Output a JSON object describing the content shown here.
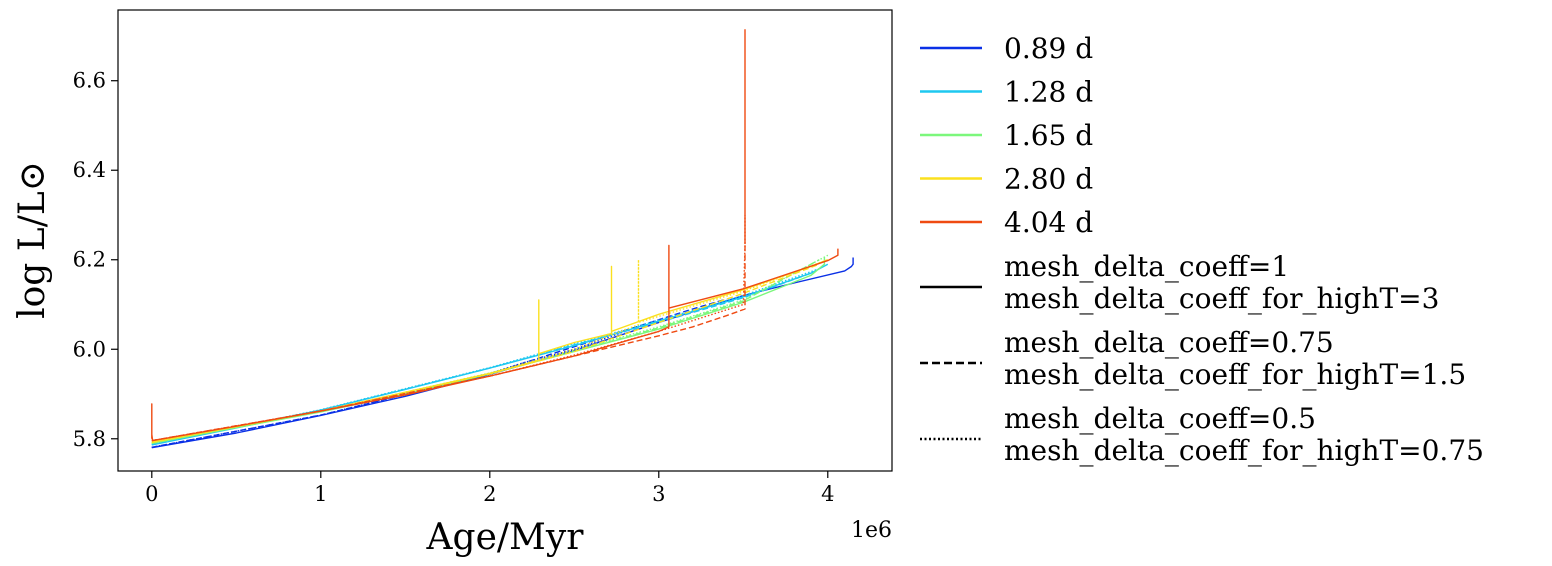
{
  "chart_data": {
    "type": "line",
    "xlabel": "Age/Myr",
    "ylabel": "log L/L⊙",
    "x_offset_text": "1e6",
    "xlim": [
      -200000,
      4380000
    ],
    "ylim": [
      5.728,
      6.758
    ],
    "x_ticks": [
      0,
      1000000,
      2000000,
      3000000,
      4000000
    ],
    "x_tick_labels": [
      "0",
      "1",
      "2",
      "3",
      "4"
    ],
    "y_ticks": [
      5.8,
      6.0,
      6.2,
      6.4,
      6.6
    ],
    "y_tick_labels": [
      "5.8",
      "6.0",
      "6.2",
      "6.4",
      "6.6"
    ],
    "grid": false,
    "legend_position": "outside-right",
    "legend_colors": [
      {
        "label": "0.89 d",
        "color": "#0a30e6"
      },
      {
        "label": "1.28 d",
        "color": "#1ec8f0"
      },
      {
        "label": "1.65 d",
        "color": "#7cf77c"
      },
      {
        "label": "2.80 d",
        "color": "#fbe01e"
      },
      {
        "label": "4.04 d",
        "color": "#ef4a12"
      }
    ],
    "legend_styles": [
      {
        "label_lines": [
          "mesh_delta_coeff=1",
          "mesh_delta_coeff_for_highT=3"
        ],
        "dash": "solid"
      },
      {
        "label_lines": [
          "mesh_delta_coeff=0.75",
          "mesh_delta_coeff_for_highT=1.5"
        ],
        "dash": "dashed"
      },
      {
        "label_lines": [
          "mesh_delta_coeff=0.5",
          "mesh_delta_coeff_for_highT=0.75"
        ],
        "dash": "dotted"
      }
    ],
    "series": [
      {
        "period": "0.89 d",
        "style": "solid",
        "color": "#0a30e6",
        "x": [
          0,
          500000,
          1000000,
          1500000,
          2000000,
          2500000,
          3000000,
          3500000,
          3800000,
          4100000,
          4140000,
          4150000,
          4150000
        ],
        "y": [
          5.78,
          5.813,
          5.852,
          5.895,
          5.944,
          5.997,
          6.06,
          6.12,
          6.148,
          6.175,
          6.185,
          6.19,
          6.205
        ]
      },
      {
        "period": "0.89 d",
        "style": "dashed",
        "color": "#0a30e6",
        "x": [
          0,
          1000000,
          2000000,
          2700000,
          3200000,
          3400000
        ],
        "y": [
          5.781,
          5.853,
          5.945,
          6.03,
          6.09,
          6.112
        ]
      },
      {
        "period": "0.89 d",
        "style": "dotted",
        "color": "#0a30e6",
        "x": [
          0,
          1000000,
          2000000,
          2200000,
          2500000,
          2800000
        ],
        "y": [
          5.781,
          5.853,
          5.946,
          5.97,
          6.0,
          6.04
        ]
      },
      {
        "period": "1.28 d",
        "style": "solid",
        "color": "#1ec8f0",
        "x": [
          0,
          500000,
          1000000,
          1500000,
          2000000,
          2500000,
          3000000,
          3500000,
          3900000,
          4000000
        ],
        "y": [
          5.786,
          5.824,
          5.864,
          5.91,
          5.958,
          6.008,
          6.063,
          6.117,
          6.17,
          6.19
        ]
      },
      {
        "period": "1.28 d",
        "style": "dashed",
        "color": "#1ec8f0",
        "x": [
          0,
          1000000,
          2000000,
          2500000,
          3000000,
          3500000,
          3900000
        ],
        "y": [
          5.787,
          5.864,
          5.958,
          6.01,
          6.06,
          6.115,
          6.17
        ]
      },
      {
        "period": "1.28 d",
        "style": "dotted",
        "color": "#1ec8f0",
        "x": [
          0,
          1000000,
          2000000,
          2500000,
          3000000,
          3500000,
          3950000
        ],
        "y": [
          5.787,
          5.865,
          5.959,
          6.012,
          6.065,
          6.12,
          6.18
        ]
      },
      {
        "period": "1.65 d",
        "style": "solid",
        "color": "#7cf77c",
        "x": [
          0,
          500000,
          1000000,
          1500000,
          2000000,
          2500000,
          3000000,
          3500000,
          3900000,
          3980000,
          3980000
        ],
        "y": [
          5.79,
          5.825,
          5.86,
          5.9,
          5.945,
          5.995,
          6.045,
          6.105,
          6.165,
          6.19,
          6.205
        ]
      },
      {
        "period": "1.65 d",
        "style": "dashed",
        "color": "#7cf77c",
        "x": [
          0,
          1000000,
          2000000,
          2500000,
          3000000,
          3500000,
          3950000
        ],
        "y": [
          5.79,
          5.861,
          5.946,
          5.995,
          6.048,
          6.108,
          6.2
        ]
      },
      {
        "period": "1.65 d",
        "style": "dotted",
        "color": "#7cf77c",
        "x": [
          0,
          1000000,
          2000000,
          2500000,
          3000000,
          3500000,
          4000000
        ],
        "y": [
          5.79,
          5.861,
          5.947,
          5.998,
          6.05,
          6.11,
          6.21
        ]
      },
      {
        "period": "2.80 d",
        "style": "solid",
        "color": "#fbe01e",
        "x": [
          0,
          1000000,
          2000000,
          2290000,
          2290000,
          2290000,
          2500000,
          2720000,
          2720000,
          2720000,
          3000000,
          3500000,
          3900000,
          4000000
        ],
        "y": [
          5.793,
          5.862,
          5.946,
          5.975,
          6.11,
          5.99,
          6.015,
          6.035,
          6.185,
          6.04,
          6.078,
          6.133,
          6.185,
          6.2
        ]
      },
      {
        "period": "2.80 d",
        "style": "dashed",
        "color": "#fbe01e",
        "x": [
          0,
          1000000,
          2000000,
          2500000,
          3000000,
          3500000,
          3950000
        ],
        "y": [
          5.792,
          5.862,
          5.945,
          5.995,
          6.06,
          6.125,
          6.19
        ]
      },
      {
        "period": "2.80 d",
        "style": "dotted",
        "color": "#fbe01e",
        "x": [
          0,
          1000000,
          2000000,
          2500000,
          2880000,
          2880000,
          2880000,
          3500000,
          4000000
        ],
        "y": [
          5.792,
          5.862,
          5.946,
          6.0,
          6.055,
          6.2,
          6.06,
          6.13,
          6.2
        ]
      },
      {
        "period": "4.04 d",
        "style": "solid",
        "color": "#ef4a12",
        "x": [
          0,
          0,
          0,
          5000,
          500000,
          1000000,
          1500000,
          2000000,
          2500000,
          3000000,
          3060000,
          3060000,
          3060000,
          3500000,
          4000000,
          4060000,
          4060000
        ],
        "y": [
          5.8,
          5.878,
          5.81,
          5.796,
          5.828,
          5.862,
          5.898,
          5.94,
          5.985,
          6.04,
          6.05,
          6.232,
          6.092,
          6.135,
          6.198,
          6.21,
          6.225
        ]
      },
      {
        "period": "4.04 d",
        "style": "dashed",
        "color": "#ef4a12",
        "x": [
          0,
          1000000,
          2000000,
          2500000,
          3000000,
          3200000,
          3400000,
          3510000,
          3510000,
          3510000
        ],
        "y": [
          5.796,
          5.862,
          5.94,
          5.985,
          6.03,
          6.05,
          6.075,
          6.09,
          6.715,
          6.235
        ]
      },
      {
        "period": "4.04 d",
        "style": "dotted",
        "color": "#ef4a12",
        "x": [
          0,
          1000000,
          2000000,
          2500000,
          3000000,
          3500000,
          3510000,
          3510000
        ],
        "y": [
          5.796,
          5.862,
          5.94,
          5.987,
          6.04,
          6.1,
          6.23,
          6.3
        ]
      }
    ]
  }
}
